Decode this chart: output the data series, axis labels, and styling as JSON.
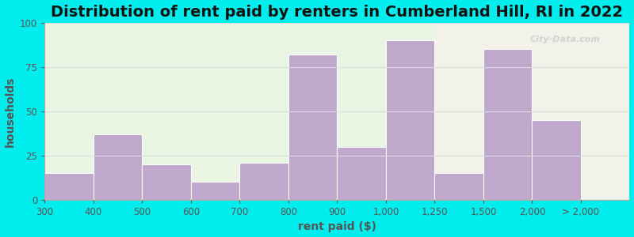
{
  "title": "Distribution of rent paid by renters in Cumberland Hill, RI in 2022",
  "xlabel": "rent paid ($)",
  "ylabel": "households",
  "bar_heights": [
    15,
    37,
    20,
    10,
    21,
    82,
    30,
    90,
    15,
    85,
    45
  ],
  "tick_positions": [
    0,
    1,
    2,
    3,
    4,
    5,
    6,
    7,
    8,
    9,
    10,
    11
  ],
  "tick_labels": [
    "300",
    "400",
    "500",
    "600",
    "700",
    "800",
    "900",
    "1,000",
    "1,250",
    "1,500",
    "2,000",
    "> 2,000"
  ],
  "bar_color": "#c0a8cc",
  "bar_edge_color": "#c0a8cc",
  "ylim": [
    0,
    100
  ],
  "yticks": [
    0,
    25,
    50,
    75,
    100
  ],
  "bg_outer": "#00eded",
  "bg_inner_left": "#e9f5e2",
  "bg_inner_right": "#f2f2ea",
  "title_fontsize": 14,
  "axis_label_fontsize": 10,
  "tick_fontsize": 8.5,
  "watermark_text": "City-Data.com"
}
